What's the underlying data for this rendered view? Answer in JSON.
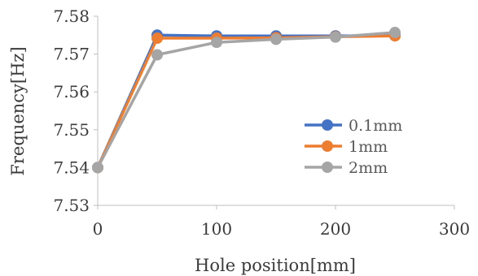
{
  "chart_data": {
    "type": "line",
    "xlabel": "Hole position[mm]",
    "ylabel": "Frequency[Hz]",
    "xlim": [
      0,
      300
    ],
    "ylim": [
      7.53,
      7.58
    ],
    "x_ticks": [
      0,
      100,
      200,
      300
    ],
    "y_ticks": [
      7.53,
      7.54,
      7.55,
      7.56,
      7.57,
      7.58
    ],
    "y_tick_labels": [
      "7.53",
      "7.54",
      "7.55",
      "7.56",
      "7.57",
      "7.58"
    ],
    "x_tick_labels": [
      "0",
      "100",
      "200",
      "300"
    ],
    "x": [
      0,
      50,
      100,
      150,
      200,
      250
    ],
    "series": [
      {
        "name": "0.1mm",
        "color": "#4472C4",
        "values": [
          7.54,
          7.575,
          7.5748,
          7.5748,
          7.5748,
          7.5749
        ]
      },
      {
        "name": "1mm",
        "color": "#ED7D31",
        "values": [
          7.54,
          7.5742,
          7.5742,
          7.5743,
          7.5746,
          7.5748
        ]
      },
      {
        "name": "2mm",
        "color": "#A5A5A5",
        "values": [
          7.54,
          7.5698,
          7.5731,
          7.5739,
          7.5745,
          7.5757
        ]
      }
    ],
    "grid": false,
    "legend_position": "lower-right"
  }
}
